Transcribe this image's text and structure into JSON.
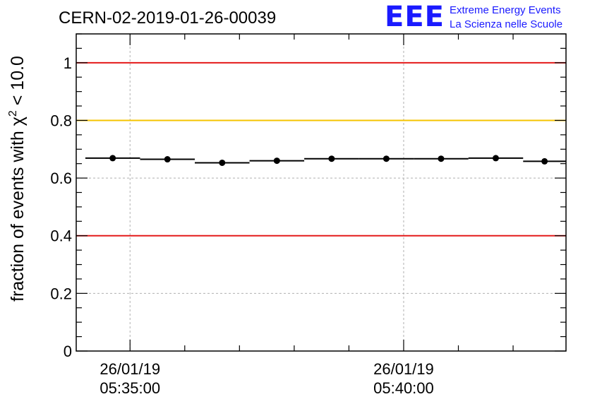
{
  "logo": {
    "mark": "EEE",
    "line1": "Extreme Energy Events",
    "line2": "La Scienza nelle Scuole"
  },
  "chart_data": {
    "type": "scatter",
    "title": "CERN-02-2019-01-26-00039",
    "ylabel": "fraction of events with χ² < 10.0",
    "ylabel_parts": {
      "prefix": "fraction of events with ",
      "chi": "χ",
      "sup": "2",
      "suffix": " < 10.0"
    },
    "ylim": [
      0,
      1.1
    ],
    "yticks": [
      {
        "value": 0,
        "label": "0"
      },
      {
        "value": 0.2,
        "label": "0.2"
      },
      {
        "value": 0.4,
        "label": "0.4"
      },
      {
        "value": 0.6,
        "label": "0.6"
      },
      {
        "value": 0.8,
        "label": "0.8"
      },
      {
        "value": 1,
        "label": "1"
      }
    ],
    "xlim": [
      "05:34:01",
      "05:42:58"
    ],
    "xticks": [
      {
        "time": "05:35:00",
        "date": "26/01/19",
        "label": "05:35:00"
      },
      {
        "time": "05:40:00",
        "date": "26/01/19",
        "label": "05:40:00"
      }
    ],
    "grid": true,
    "reference_lines": [
      {
        "y": 1.0,
        "color": "#e41a1a"
      },
      {
        "y": 0.8,
        "color": "#f5c400"
      },
      {
        "y": 0.4,
        "color": "#e41a1a"
      }
    ],
    "series": [
      {
        "marker_color": "#000000",
        "points": [
          {
            "x_start": "05:34:11",
            "x_end": "05:35:11",
            "y": 0.669
          },
          {
            "x_start": "05:35:11",
            "x_end": "05:36:11",
            "y": 0.665
          },
          {
            "x_start": "05:36:11",
            "x_end": "05:37:11",
            "y": 0.653
          },
          {
            "x_start": "05:37:11",
            "x_end": "05:38:11",
            "y": 0.66
          },
          {
            "x_start": "05:38:11",
            "x_end": "05:39:11",
            "y": 0.667
          },
          {
            "x_start": "05:39:11",
            "x_end": "05:40:11",
            "y": 0.667
          },
          {
            "x_start": "05:40:11",
            "x_end": "05:41:11",
            "y": 0.667
          },
          {
            "x_start": "05:41:11",
            "x_end": "05:42:11",
            "y": 0.669
          },
          {
            "x_start": "05:42:11",
            "x_end": "05:42:58",
            "y": 0.658
          }
        ]
      }
    ]
  }
}
